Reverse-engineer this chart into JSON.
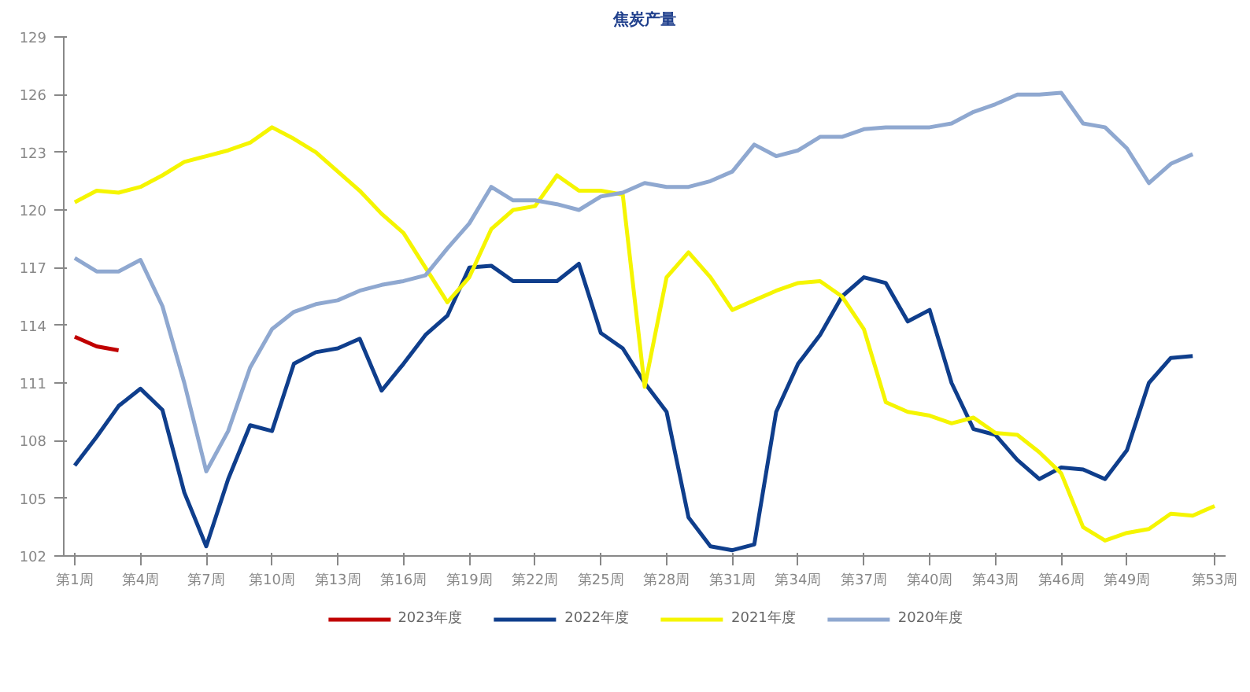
{
  "chart_data": {
    "type": "line",
    "title": "焦炭产量",
    "categories": [
      "第1周",
      null,
      null,
      "第4周",
      null,
      null,
      "第7周",
      null,
      null,
      "第10周",
      null,
      null,
      "第13周",
      null,
      null,
      "第16周",
      null,
      null,
      "第19周",
      null,
      null,
      "第22周",
      null,
      null,
      "第25周",
      null,
      null,
      "第28周",
      null,
      null,
      "第31周",
      null,
      null,
      "第34周",
      null,
      null,
      "第37周",
      null,
      null,
      "第40周",
      null,
      null,
      "第43周",
      null,
      null,
      "第46周",
      null,
      null,
      "第49周",
      null,
      null,
      null,
      "第53周"
    ],
    "ylim": [
      102,
      129
    ],
    "yticks": [
      102,
      105,
      108,
      111,
      114,
      117,
      120,
      123,
      126,
      129
    ],
    "grid": false,
    "legend": "bottom",
    "marker": "none",
    "line_style": "solid",
    "series": [
      {
        "name": "2023年度",
        "color": "#c00000",
        "values": [
          113.4,
          112.9,
          112.7,
          null,
          null,
          null,
          null,
          null,
          null,
          null,
          null,
          null,
          null,
          null,
          null,
          null,
          null,
          null,
          null,
          null,
          null,
          null,
          null,
          null,
          null,
          null,
          null,
          null,
          null,
          null,
          null,
          null,
          null,
          null,
          null,
          null,
          null,
          null,
          null,
          null,
          null,
          null,
          null,
          null,
          null,
          null,
          null,
          null,
          null,
          null,
          null,
          null,
          null
        ]
      },
      {
        "name": "2022年度",
        "color": "#0f3e8c",
        "values": [
          106.7,
          108.2,
          109.8,
          110.7,
          109.6,
          105.3,
          102.5,
          106.0,
          108.8,
          108.5,
          112.0,
          112.6,
          112.8,
          113.3,
          110.6,
          112.0,
          113.5,
          114.5,
          117.0,
          117.1,
          116.3,
          116.3,
          116.3,
          117.2,
          113.6,
          112.8,
          111.0,
          109.5,
          104.0,
          102.5,
          102.3,
          102.6,
          109.5,
          112.0,
          113.5,
          115.5,
          116.5,
          116.2,
          114.2,
          114.8,
          111.0,
          108.6,
          108.3,
          107.0,
          106.0,
          106.6,
          106.5,
          106.0,
          107.5,
          111.0,
          112.3,
          112.4,
          null
        ]
      },
      {
        "name": "2021年度",
        "color": "#f5f500",
        "values": [
          120.4,
          121.0,
          120.9,
          121.2,
          121.8,
          122.5,
          122.8,
          123.1,
          123.5,
          124.3,
          123.7,
          123.0,
          122.0,
          121.0,
          119.8,
          118.8,
          117.0,
          115.2,
          116.5,
          119.0,
          120.0,
          120.2,
          121.8,
          121.0,
          121.0,
          120.8,
          110.8,
          116.5,
          117.8,
          116.5,
          114.8,
          115.3,
          115.8,
          116.2,
          116.3,
          115.5,
          113.8,
          110.0,
          109.5,
          109.3,
          108.9,
          109.2,
          108.4,
          108.3,
          107.4,
          106.3,
          103.5,
          102.8,
          103.2,
          103.4,
          104.2,
          104.1,
          104.6
        ]
      },
      {
        "name": "2020年度",
        "color": "#8fa8d0",
        "values": [
          117.5,
          116.8,
          116.8,
          117.4,
          115.0,
          111.0,
          106.4,
          108.5,
          111.8,
          113.8,
          114.7,
          115.1,
          115.3,
          115.8,
          116.1,
          116.3,
          116.6,
          118.0,
          119.3,
          121.2,
          120.5,
          120.5,
          120.3,
          120.0,
          120.7,
          120.9,
          121.4,
          121.2,
          121.2,
          121.5,
          122.0,
          123.4,
          122.8,
          123.1,
          123.8,
          123.8,
          124.2,
          124.3,
          124.3,
          124.3,
          124.5,
          125.1,
          125.5,
          126.0,
          126.0,
          126.1,
          124.5,
          124.3,
          123.2,
          121.4,
          122.4,
          122.9,
          null
        ]
      }
    ]
  }
}
